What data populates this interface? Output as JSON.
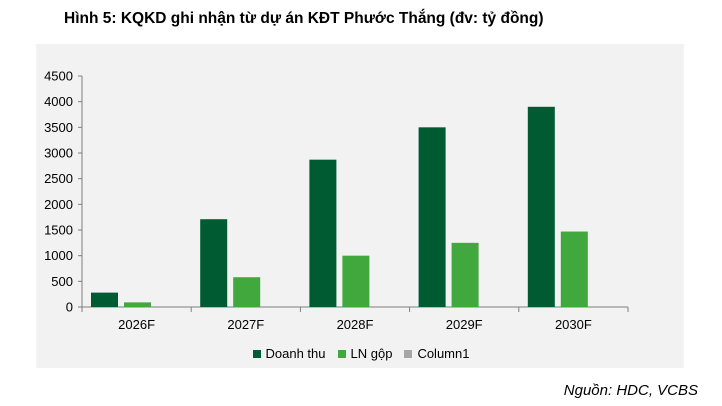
{
  "title": "Hình 5: KQKD ghi nhận từ dự án KĐT Phước Thắng (đv: tỷ đồng)",
  "source": "Nguồn: HDC, VCBS",
  "colors": {
    "doanh_thu": "#005a32",
    "ln_gop": "#41a83e",
    "column1": "#a6a6a6",
    "panel_bg": "#f2f2f2"
  },
  "chart_data": {
    "type": "bar",
    "categories": [
      "2026F",
      "2027F",
      "2028F",
      "2029F",
      "2030F"
    ],
    "series": [
      {
        "name": "Doanh thu",
        "values": [
          280,
          1710,
          2870,
          3500,
          3900
        ]
      },
      {
        "name": "LN gộp",
        "values": [
          90,
          580,
          1000,
          1250,
          1470
        ]
      },
      {
        "name": "Column1",
        "values": [
          0,
          0,
          0,
          0,
          0
        ]
      }
    ],
    "yticks": [
      "0",
      "500",
      "1000",
      "1500",
      "2000",
      "2500",
      "3000",
      "3500",
      "4000",
      "4500"
    ],
    "ylim": [
      0,
      4500
    ],
    "legend_position": "bottom",
    "grid": false
  }
}
